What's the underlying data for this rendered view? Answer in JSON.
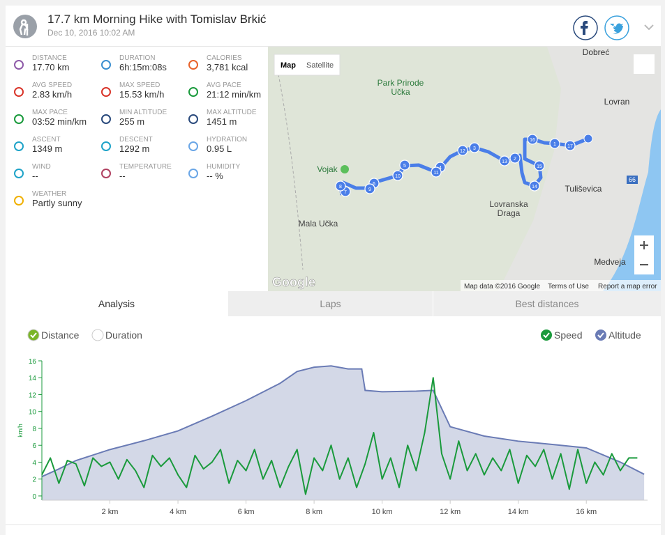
{
  "header": {
    "title": "17.7 km Morning Hike with",
    "athlete": "Tomislav Brkić",
    "date": "Dec 10, 2016 10:02 AM"
  },
  "stats": [
    {
      "label": "DISTANCE",
      "value": "17.70 km"
    },
    {
      "label": "DURATION",
      "value": "6h:15m:08s"
    },
    {
      "label": "CALORIES",
      "value": "3,781 kcal"
    },
    {
      "label": "AVG SPEED",
      "value": "2.83 km/h"
    },
    {
      "label": "MAX SPEED",
      "value": "15.53 km/h"
    },
    {
      "label": "AVG PACE",
      "value": "21:12 min/km"
    },
    {
      "label": "MAX PACE",
      "value": "03:52 min/km"
    },
    {
      "label": "MIN ALTITUDE",
      "value": "255 m"
    },
    {
      "label": "MAX ALTITUDE",
      "value": "1451 m"
    },
    {
      "label": "ASCENT",
      "value": "1349 m"
    },
    {
      "label": "DESCENT",
      "value": "1292 m"
    },
    {
      "label": "HYDRATION",
      "value": "0.95 L"
    },
    {
      "label": "WIND",
      "value": "--"
    },
    {
      "label": "TEMPERATURE",
      "value": "--"
    },
    {
      "label": "HUMIDITY",
      "value": "-- %"
    },
    {
      "label": "WEATHER",
      "value": "Partly sunny"
    }
  ],
  "map": {
    "buttons": [
      "Map",
      "Satellite"
    ],
    "places": [
      "Dobreć",
      "Lovran",
      "Park Prirode",
      "Učka",
      "Vojak",
      "Tuliševica",
      "Lovranska",
      "Draga",
      "Mala Učka",
      "Medveja",
      "66"
    ],
    "markers": [
      "1",
      "2",
      "3",
      "4",
      "5",
      "6",
      "7",
      "8",
      "9",
      "10",
      "11",
      "12",
      "13",
      "14",
      "15",
      "16",
      "17"
    ],
    "logo": "Google",
    "footer": [
      "Map data ©2016 Google",
      "Terms of Use",
      "Report a map error"
    ]
  },
  "tabs": [
    "Analysis",
    "Laps",
    "Best distances"
  ],
  "chart_data": {
    "type": "line",
    "x_options": [
      "Distance",
      "Duration"
    ],
    "y_label": "km/h",
    "xlim": [
      0,
      17.8
    ],
    "xticks": [
      {
        "value": 2,
        "label": "2 km"
      },
      {
        "value": 4,
        "label": "4 km"
      },
      {
        "value": 6,
        "label": "6 km"
      },
      {
        "value": 8,
        "label": "8 km"
      },
      {
        "value": 10,
        "label": "10 km"
      },
      {
        "value": 12,
        "label": "12 km"
      },
      {
        "value": 14,
        "label": "14 km"
      },
      {
        "value": 16,
        "label": "16 km"
      }
    ],
    "ylim": [
      -0.5,
      16
    ],
    "yticks": [
      0,
      2,
      4,
      6,
      8,
      10,
      12,
      14,
      16
    ],
    "y2lim": [
      2,
      1497
    ],
    "grid": false,
    "series": [
      {
        "name": "Speed",
        "color": "#1a9a3c",
        "x": [
          0,
          0.25,
          0.5,
          0.75,
          1,
          1.25,
          1.5,
          1.75,
          2,
          2.25,
          2.5,
          2.75,
          3,
          3.25,
          3.5,
          3.75,
          4,
          4.25,
          4.5,
          4.75,
          5,
          5.25,
          5.5,
          5.75,
          6,
          6.25,
          6.5,
          6.75,
          7,
          7.25,
          7.5,
          7.75,
          8,
          8.25,
          8.5,
          8.75,
          9,
          9.25,
          9.5,
          9.75,
          10,
          10.25,
          10.5,
          10.75,
          11,
          11.25,
          11.5,
          11.75,
          12,
          12.25,
          12.5,
          12.75,
          13,
          13.25,
          13.5,
          13.75,
          14,
          14.25,
          14.5,
          14.75,
          15,
          15.25,
          15.5,
          15.75,
          16,
          16.25,
          16.5,
          16.75,
          17,
          17.25,
          17.5
        ],
        "values": [
          2.5,
          4.5,
          1.5,
          4.2,
          3.8,
          1.2,
          4.5,
          3.5,
          4,
          2,
          4.3,
          3,
          1,
          4.8,
          3.5,
          4.5,
          2.5,
          1,
          4.8,
          3.2,
          4,
          5.5,
          1.5,
          4.2,
          3,
          5.5,
          2,
          4.2,
          1,
          3.5,
          5.5,
          0.2,
          4.5,
          3,
          6,
          2,
          4.5,
          1,
          3.8,
          7.5,
          2,
          4.5,
          1,
          6,
          3,
          7.5,
          14,
          5,
          2,
          6.5,
          3,
          5,
          2.5,
          4.5,
          3,
          5.5,
          1.5,
          4.8,
          3.5,
          5.5,
          2,
          5,
          0.8,
          5.5,
          1.5,
          4,
          2.5,
          5,
          3,
          4.5,
          4.5
        ]
      },
      {
        "name": "Altitude",
        "color": "#6a7bb5",
        "fill": "#d3d8e7",
        "axis": "y2",
        "x": [
          0,
          0.5,
          1,
          2,
          3,
          4,
          5,
          6,
          7,
          7.5,
          8,
          8.5,
          9,
          9.4,
          9.5,
          10,
          11,
          11.5,
          12,
          13,
          14,
          15,
          16,
          17,
          17.7
        ],
        "values": [
          255,
          337,
          427,
          545,
          640,
          745,
          903,
          1070,
          1256,
          1383,
          1429,
          1443,
          1410,
          1410,
          1180,
          1165,
          1172,
          1180,
          790,
          690,
          635,
          600,
          563,
          410,
          280
        ]
      }
    ]
  }
}
